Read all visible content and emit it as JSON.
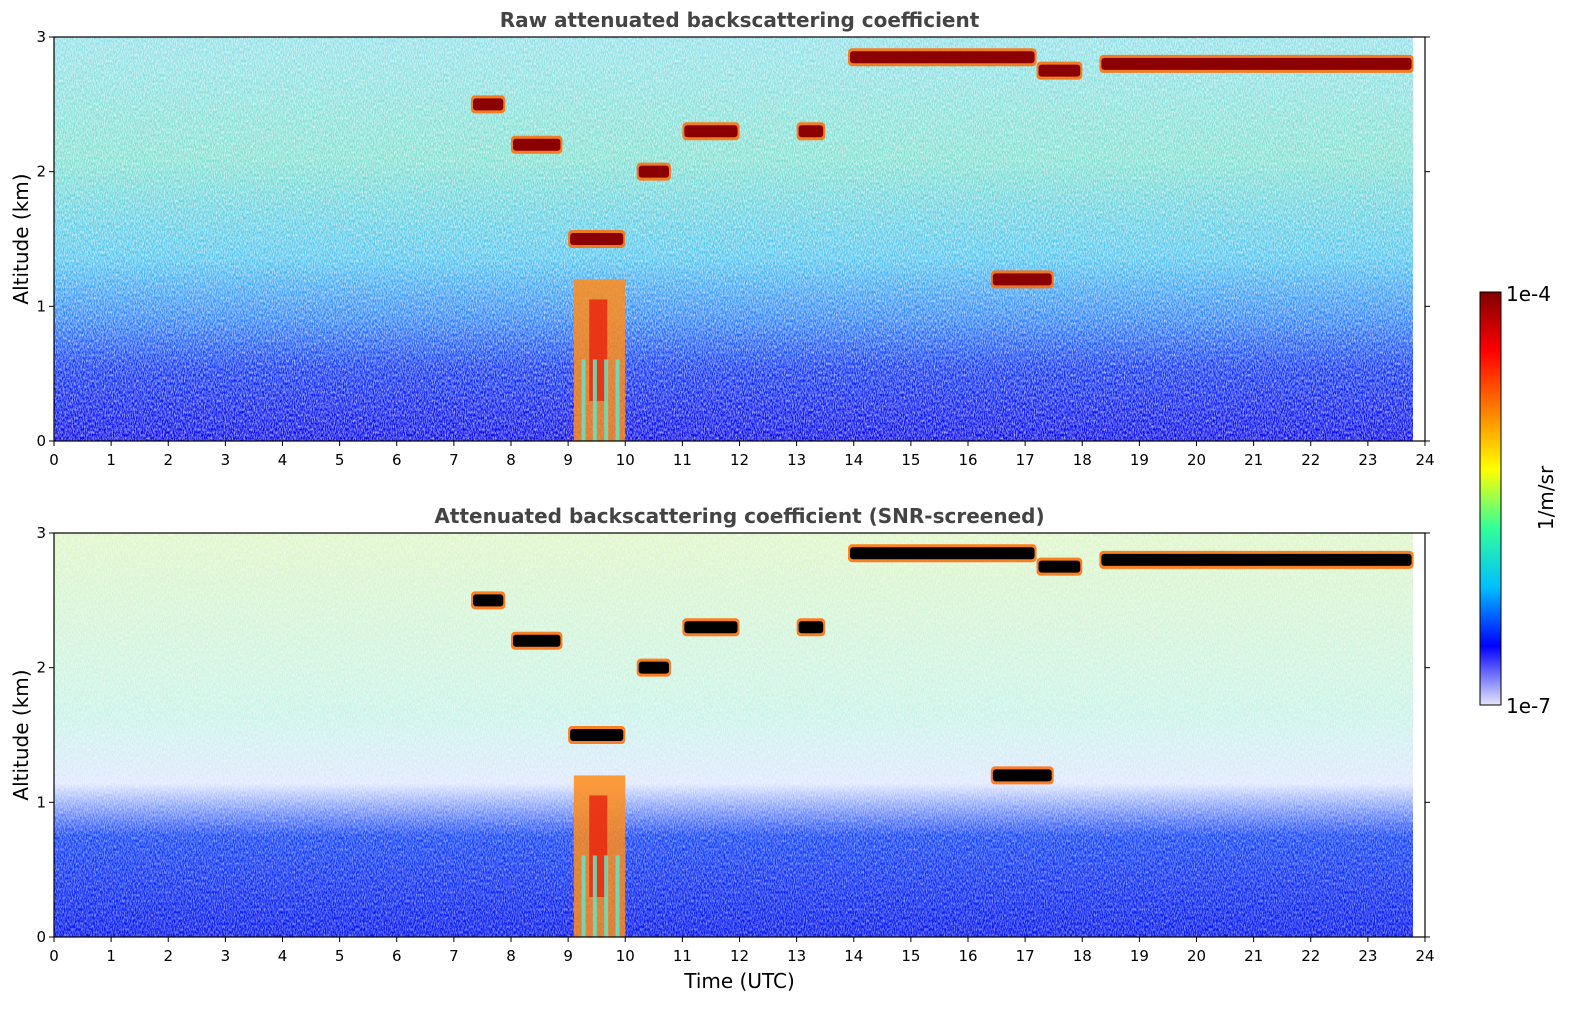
{
  "chart_data": [
    {
      "type": "heatmap",
      "title": "Raw attenuated backscattering coefficient",
      "ylabel": "Altitude (km)",
      "xlabel": "",
      "xlim": [
        0,
        24
      ],
      "ylim": [
        0,
        3
      ],
      "xticks": [
        "0",
        "1",
        "2",
        "3",
        "4",
        "5",
        "6",
        "7",
        "8",
        "9",
        "10",
        "11",
        "12",
        "13",
        "14",
        "15",
        "16",
        "17",
        "18",
        "19",
        "20",
        "21",
        "22",
        "23",
        "24"
      ],
      "yticks": [
        "0",
        "1",
        "2",
        "3"
      ],
      "screened": false,
      "features": [
        {
          "kind": "cloud",
          "t_start": 7.3,
          "t_end": 7.9,
          "alt_km": 2.5
        },
        {
          "kind": "cloud",
          "t_start": 8.0,
          "t_end": 8.9,
          "alt_km": 2.2
        },
        {
          "kind": "cloud",
          "t_start": 9.0,
          "t_end": 10.0,
          "alt_km": 1.5
        },
        {
          "kind": "precipitation",
          "t_start": 9.1,
          "t_end": 10.0,
          "alt_km": 0.6
        },
        {
          "kind": "cloud",
          "t_start": 10.2,
          "t_end": 10.8,
          "alt_km": 2.0
        },
        {
          "kind": "cloud",
          "t_start": 11.0,
          "t_end": 12.0,
          "alt_km": 2.3
        },
        {
          "kind": "cloud",
          "t_start": 13.0,
          "t_end": 13.5,
          "alt_km": 2.3
        },
        {
          "kind": "cloud",
          "t_start": 13.9,
          "t_end": 17.2,
          "alt_km": 2.85
        },
        {
          "kind": "cloud",
          "t_start": 17.2,
          "t_end": 18.0,
          "alt_km": 2.75
        },
        {
          "kind": "cloud",
          "t_start": 18.3,
          "t_end": 23.8,
          "alt_km": 2.8
        },
        {
          "kind": "cloud",
          "t_start": 16.4,
          "t_end": 17.5,
          "alt_km": 1.2
        }
      ]
    },
    {
      "type": "heatmap",
      "title": "Attenuated backscattering coefficient (SNR-screened)",
      "ylabel": "Altitude (km)",
      "xlabel": "Time (UTC)",
      "xlim": [
        0,
        24
      ],
      "ylim": [
        0,
        3
      ],
      "xticks": [
        "0",
        "1",
        "2",
        "3",
        "4",
        "5",
        "6",
        "7",
        "8",
        "9",
        "10",
        "11",
        "12",
        "13",
        "14",
        "15",
        "16",
        "17",
        "18",
        "19",
        "20",
        "21",
        "22",
        "23",
        "24"
      ],
      "yticks": [
        "0",
        "1",
        "2",
        "3"
      ],
      "screened": true,
      "features": [
        {
          "kind": "cloud",
          "t_start": 7.3,
          "t_end": 7.9,
          "alt_km": 2.5
        },
        {
          "kind": "cloud",
          "t_start": 8.0,
          "t_end": 8.9,
          "alt_km": 2.2
        },
        {
          "kind": "cloud",
          "t_start": 9.0,
          "t_end": 10.0,
          "alt_km": 1.5
        },
        {
          "kind": "precipitation",
          "t_start": 9.1,
          "t_end": 10.0,
          "alt_km": 0.6
        },
        {
          "kind": "cloud",
          "t_start": 10.2,
          "t_end": 10.8,
          "alt_km": 2.0
        },
        {
          "kind": "cloud",
          "t_start": 11.0,
          "t_end": 12.0,
          "alt_km": 2.3
        },
        {
          "kind": "cloud",
          "t_start": 13.0,
          "t_end": 13.5,
          "alt_km": 2.3
        },
        {
          "kind": "cloud",
          "t_start": 13.9,
          "t_end": 17.2,
          "alt_km": 2.85
        },
        {
          "kind": "cloud",
          "t_start": 17.2,
          "t_end": 18.0,
          "alt_km": 2.75
        },
        {
          "kind": "cloud",
          "t_start": 18.3,
          "t_end": 23.8,
          "alt_km": 2.8
        },
        {
          "kind": "cloud",
          "t_start": 16.4,
          "t_end": 17.5,
          "alt_km": 1.2
        }
      ]
    }
  ],
  "colorbar": {
    "label": "1/m/sr",
    "max_label": "1e-4",
    "min_label": "1e-7",
    "colormap": "jet",
    "colors": [
      "#e6e6fa",
      "#0000ff",
      "#00bfff",
      "#33ff99",
      "#ffff00",
      "#ff7f00",
      "#ff0000",
      "#800000"
    ]
  }
}
